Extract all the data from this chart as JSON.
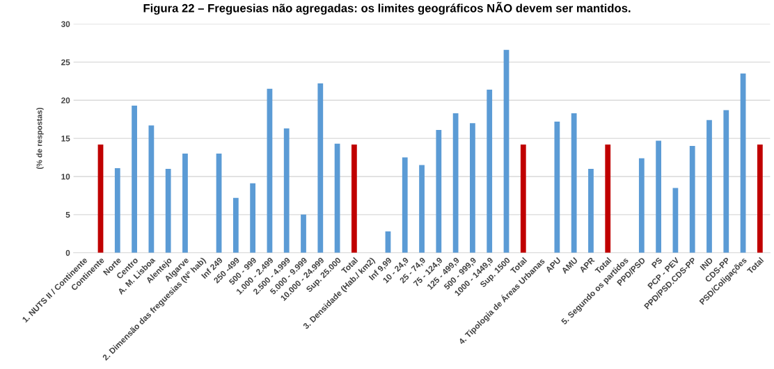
{
  "chart_data": {
    "type": "bar",
    "title": "Figura 22 – Freguesias não agregadas: os limites geográficos NÃO devem ser mantidos.",
    "ylabel": "(% de respostas)",
    "categories": [
      "1. NUTS II / Continente",
      "Continente",
      "Norte",
      "Centro",
      "A. M. Lisboa",
      "Alentejo",
      "Algarve",
      "2. Dimensão das freguesias (Nº hab)",
      "Inf 249",
      "250 -499",
      "500 - 999",
      "1.000 - 2.499",
      "2.500 - 4.999",
      "5.000 - 9.999",
      "10.000 - 24.999",
      "Sup. 25.000",
      "Total",
      "3. Densidade (Hab./ km2)",
      "Inf 9,99",
      "10 - 24,9",
      "25 - 74,9",
      "75 - 124,9",
      "125 - 499,9",
      "500 - 999,9",
      "1000 - 1449,9",
      "Sup. 1500",
      "Total",
      "4. Tipologia de Áreas Urbanas",
      "APU",
      "AMU",
      "APR",
      "Total",
      "5. Segundo os partidos",
      "PPD/PSD",
      "PS",
      "PCP - PEV",
      "PPD/PSD.CDS-PP",
      "IND",
      "CDS-PP",
      "PSD/Coligações",
      "Total"
    ],
    "values": [
      null,
      14.2,
      11.1,
      19.3,
      16.7,
      11.0,
      13.0,
      null,
      13.0,
      7.2,
      9.1,
      21.5,
      16.3,
      5.0,
      22.2,
      14.3,
      14.2,
      null,
      2.8,
      12.5,
      11.5,
      16.1,
      18.3,
      17.0,
      21.4,
      26.6,
      14.2,
      null,
      17.2,
      18.3,
      11.0,
      14.2,
      null,
      12.4,
      14.7,
      8.5,
      14.0,
      17.4,
      18.7,
      23.5,
      14.2
    ],
    "colors": [
      "#5b9bd5",
      "#c00000",
      "#5b9bd5",
      "#5b9bd5",
      "#5b9bd5",
      "#5b9bd5",
      "#5b9bd5",
      "#5b9bd5",
      "#5b9bd5",
      "#5b9bd5",
      "#5b9bd5",
      "#5b9bd5",
      "#5b9bd5",
      "#5b9bd5",
      "#5b9bd5",
      "#5b9bd5",
      "#c00000",
      "#5b9bd5",
      "#5b9bd5",
      "#5b9bd5",
      "#5b9bd5",
      "#5b9bd5",
      "#5b9bd5",
      "#5b9bd5",
      "#5b9bd5",
      "#5b9bd5",
      "#c00000",
      "#5b9bd5",
      "#5b9bd5",
      "#5b9bd5",
      "#5b9bd5",
      "#c00000",
      "#5b9bd5",
      "#5b9bd5",
      "#5b9bd5",
      "#5b9bd5",
      "#5b9bd5",
      "#5b9bd5",
      "#5b9bd5",
      "#5b9bd5",
      "#c00000"
    ],
    "ylim": [
      0,
      30
    ],
    "yticks": [
      0,
      5,
      10,
      15,
      20,
      25,
      30
    ],
    "grid": "y",
    "legend": false
  }
}
